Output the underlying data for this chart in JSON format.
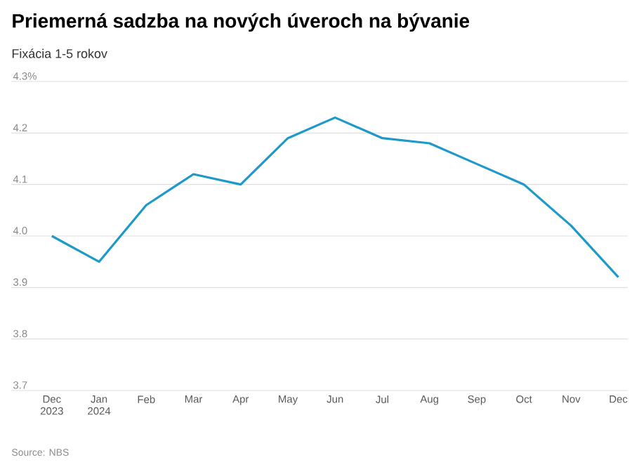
{
  "chart_data": {
    "type": "line",
    "title": "Priemerná sadzba na nových úveroch na bývanie",
    "subtitle": "Fixácia 1-5 rokov",
    "categories": [
      "Dec 2023",
      "Jan 2024",
      "Feb",
      "Mar",
      "Apr",
      "May",
      "Jun",
      "Jul",
      "Aug",
      "Sep",
      "Oct",
      "Nov",
      "Dec"
    ],
    "series": [
      {
        "color": "#1d9ac9",
        "values": [
          4.0,
          3.95,
          4.06,
          4.12,
          4.1,
          4.19,
          4.23,
          4.19,
          4.18,
          4.14,
          4.1,
          4.02,
          3.92
        ]
      }
    ],
    "ylim": [
      3.7,
      4.3
    ],
    "yticks": [
      {
        "value": 3.7,
        "label": "3.7"
      },
      3.8,
      3.9,
      {
        "value": 4.0,
        "label": "4.0"
      },
      4.1,
      4.2,
      {
        "value": 4.3,
        "label": "4.3%"
      }
    ],
    "grid": "y",
    "marker": "none",
    "line_style": "solid",
    "annotations": [
      "Source: NBS"
    ]
  }
}
